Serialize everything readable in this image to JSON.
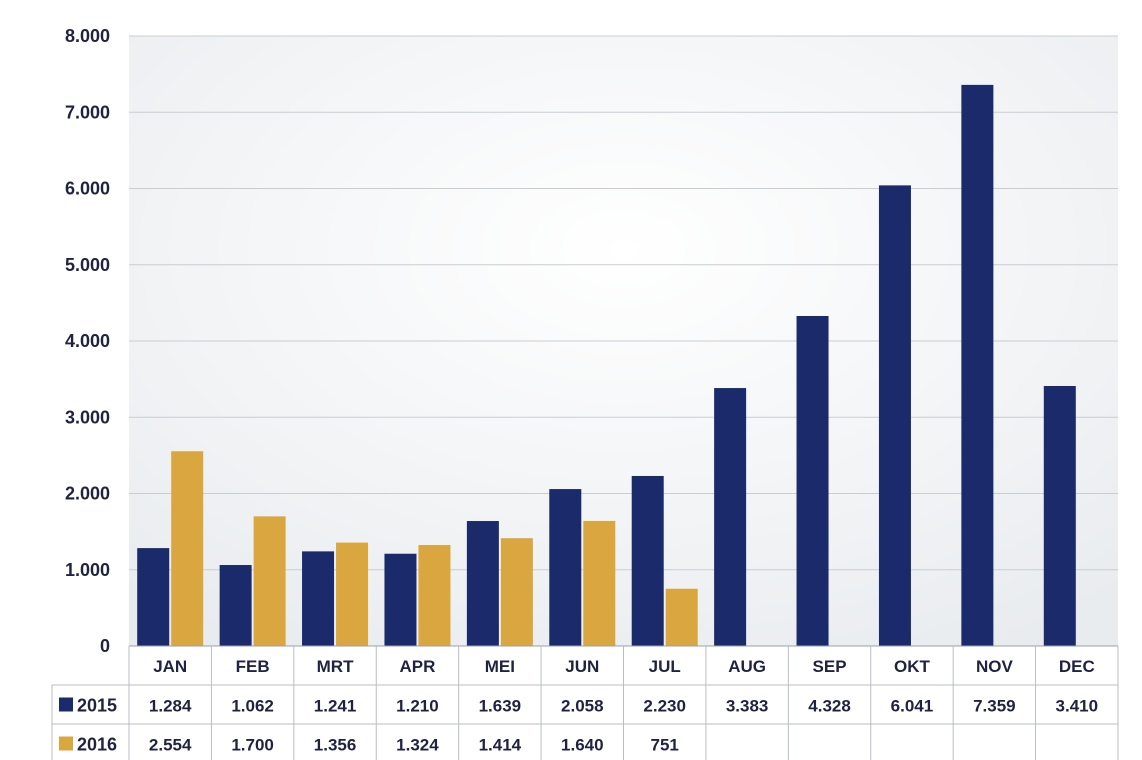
{
  "chart_data": {
    "type": "bar",
    "categories": [
      "JAN",
      "FEB",
      "MRT",
      "APR",
      "MEI",
      "JUN",
      "JUL",
      "AUG",
      "SEP",
      "OKT",
      "NOV",
      "DEC"
    ],
    "series": [
      {
        "name": "2015",
        "color": "#1b2a6b",
        "values": [
          1284,
          1062,
          1241,
          1210,
          1639,
          2058,
          2230,
          3383,
          4328,
          6041,
          7359,
          3410
        ],
        "labels": [
          "1.284",
          "1.062",
          "1.241",
          "1.210",
          "1.639",
          "2.058",
          "2.230",
          "3.383",
          "4.328",
          "6.041",
          "7.359",
          "3.410"
        ]
      },
      {
        "name": "2016",
        "color": "#d9a63f",
        "values": [
          2554,
          1700,
          1356,
          1324,
          1414,
          1640,
          751,
          null,
          null,
          null,
          null,
          null
        ],
        "labels": [
          "2.554",
          "1.700",
          "1.356",
          "1.324",
          "1.414",
          "1.640",
          "751",
          "",
          "",
          "",
          "",
          ""
        ]
      }
    ],
    "ylim": [
      0,
      8000
    ],
    "yticks": [
      0,
      1000,
      2000,
      3000,
      4000,
      5000,
      6000,
      7000,
      8000
    ],
    "ytick_labels": [
      "0",
      "1.000",
      "2.000",
      "3.000",
      "4.000",
      "5.000",
      "6.000",
      "7.000",
      "8.000"
    ],
    "grid": true,
    "data_table": true
  }
}
